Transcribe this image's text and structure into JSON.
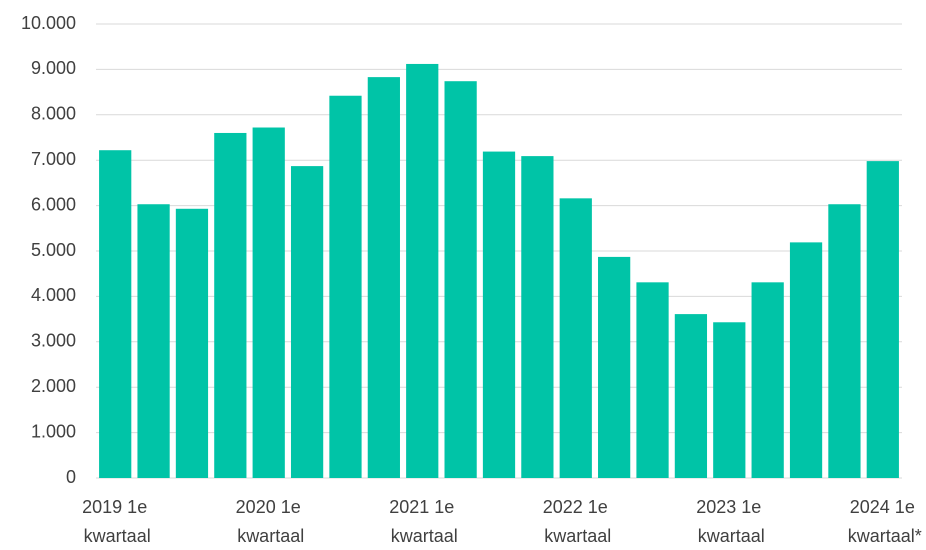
{
  "chart_data": {
    "type": "bar",
    "categories": [
      "2019 1e kwartaal",
      null,
      null,
      null,
      "2020 1e kwartaal",
      null,
      null,
      null,
      "2021 1e kwartaal",
      null,
      null,
      null,
      "2022 1e kwartaal",
      null,
      null,
      null,
      "2023 1e kwartaal",
      null,
      null,
      null,
      "2024 1e kwartaal*"
    ],
    "values": [
      7220,
      6030,
      5930,
      7600,
      7720,
      6870,
      8420,
      8830,
      9120,
      8740,
      7190,
      7090,
      6160,
      4870,
      4310,
      3610,
      3430,
      4310,
      5190,
      6030,
      6980
    ],
    "color": "#00c4a7",
    "ylim": [
      0,
      10000
    ],
    "yticks": [
      0,
      {
        "value": 1000,
        "label": "1.000"
      },
      {
        "value": 2000,
        "label": "2.000"
      },
      {
        "value": 3000,
        "label": "3.000"
      },
      {
        "value": 4000,
        "label": "4.000"
      },
      {
        "value": 5000,
        "label": "5.000"
      },
      {
        "value": 6000,
        "label": "6.000"
      },
      {
        "value": 7000,
        "label": "7.000"
      },
      {
        "value": 8000,
        "label": "8.000"
      },
      {
        "value": 9000,
        "label": "9.000"
      },
      {
        "value": 10000,
        "label": "10.000"
      }
    ],
    "grid": true
  }
}
